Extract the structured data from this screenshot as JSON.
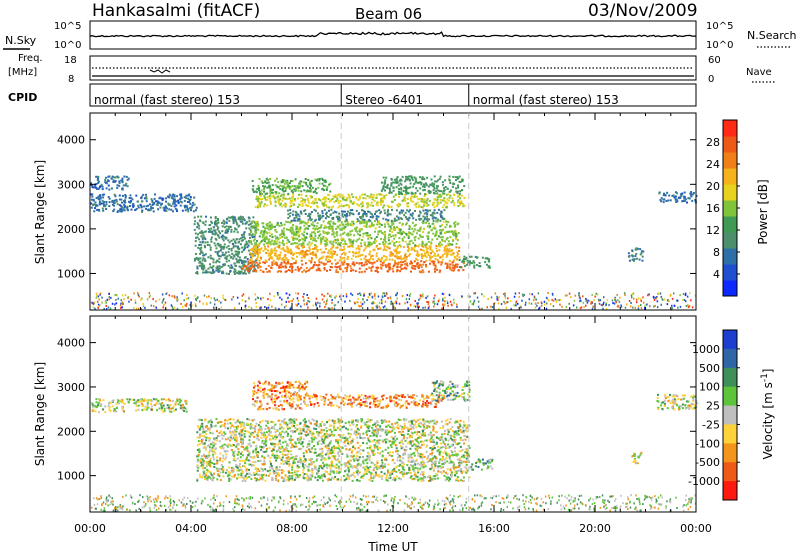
{
  "header": {
    "station": "Hankasalmi (fitACF)",
    "beam": "Beam 06",
    "date": "03/Nov/2009"
  },
  "noise_panel": {
    "left_label": "N.Sky",
    "right_label": "N.Search",
    "left_ticks": [
      "10^5",
      "10^0"
    ],
    "right_ticks": [
      "10^5",
      "10^0"
    ]
  },
  "freq_panel": {
    "left_label_line1": "Freq.",
    "left_label_line2": "[MHz]",
    "right_label": "Nave",
    "left_ticks": [
      "18",
      "8"
    ],
    "right_ticks": [
      "60",
      "0"
    ]
  },
  "cpid_panel": {
    "label": "CPID",
    "segments": [
      {
        "text": "normal (fast stereo) 153",
        "start_hour": 0.0,
        "end_hour": 9.95
      },
      {
        "text": "Stereo -6401",
        "start_hour": 9.95,
        "end_hour": 15.0
      },
      {
        "text": "normal (fast stereo) 153",
        "start_hour": 15.0,
        "end_hour": 24.0
      }
    ]
  },
  "chart_data": [
    {
      "type": "heatmap",
      "name": "power",
      "ylabel": "Slant Range [km]",
      "ylim": [
        180,
        4600
      ],
      "yticks": [
        1000,
        2000,
        3000,
        4000
      ],
      "colorbar": {
        "label": "Power [dB]",
        "range": [
          0,
          32
        ],
        "ticks": [
          4,
          8,
          12,
          16,
          20,
          24,
          28
        ],
        "colors": [
          "#0c29ff",
          "#1f4fd1",
          "#2e6fa8",
          "#4d8f6d",
          "#3f9b53",
          "#7fc43a",
          "#e8d21e",
          "#f5b21a",
          "#f07f1a",
          "#ee5a18",
          "#ff2b14"
        ]
      },
      "regions": [
        {
          "t0": 0.0,
          "t1": 4.2,
          "r0": 2400,
          "r1": 2800,
          "level": 7
        },
        {
          "t0": 0.0,
          "t1": 1.5,
          "r0": 2900,
          "r1": 3200,
          "level": 7
        },
        {
          "t0": 4.1,
          "t1": 6.6,
          "r0": 1000,
          "r1": 2300,
          "level": 10
        },
        {
          "t0": 6.0,
          "t1": 14.8,
          "r0": 1050,
          "r1": 1300,
          "level": 27
        },
        {
          "t0": 6.3,
          "t1": 14.6,
          "r0": 1300,
          "r1": 1650,
          "level": 22
        },
        {
          "t0": 6.3,
          "t1": 14.6,
          "r0": 1650,
          "r1": 2200,
          "level": 16
        },
        {
          "t0": 7.8,
          "t1": 14.0,
          "r0": 2200,
          "r1": 2450,
          "level": 9
        },
        {
          "t0": 6.5,
          "t1": 14.8,
          "r0": 2500,
          "r1": 2800,
          "level": 18
        },
        {
          "t0": 6.4,
          "t1": 9.5,
          "r0": 2800,
          "r1": 3150,
          "level": 14
        },
        {
          "t0": 11.5,
          "t1": 14.8,
          "r0": 2800,
          "r1": 3200,
          "level": 12
        },
        {
          "t0": 14.6,
          "t1": 15.8,
          "r0": 1150,
          "r1": 1400,
          "level": 12
        },
        {
          "t0": 21.3,
          "t1": 21.9,
          "r0": 1300,
          "r1": 1600,
          "level": 8
        },
        {
          "t0": 22.5,
          "t1": 24.0,
          "r0": 2600,
          "r1": 2850,
          "level": 7
        }
      ],
      "ground_scatter_level": 6
    },
    {
      "type": "heatmap",
      "name": "velocity",
      "ylabel": "Slant Range [km]",
      "ylim": [
        180,
        4600
      ],
      "yticks": [
        1000,
        2000,
        3000,
        4000
      ],
      "colorbar": {
        "label": "Velocity [m s^-1]",
        "ticks": [
          "1000",
          "500",
          "100",
          "25",
          "-25",
          "-100",
          "-500",
          "-1000"
        ],
        "colors": [
          "#1d3fcf",
          "#2f66a8",
          "#3f8f5a",
          "#5cc43a",
          "#bfbfbf",
          "#ffd23a",
          "#f3951c",
          "#ef5a18",
          "#ff1a10"
        ]
      },
      "regions": [
        {
          "t0": 0.0,
          "t1": 3.8,
          "r0": 2450,
          "r1": 2750,
          "level": 4
        },
        {
          "t0": 4.2,
          "t1": 15.0,
          "r0": 900,
          "r1": 2300,
          "level": 4
        },
        {
          "t0": 6.4,
          "t1": 8.6,
          "r0": 2500,
          "r1": 3150,
          "level": 6
        },
        {
          "t0": 8.6,
          "t1": 14.0,
          "r0": 2550,
          "r1": 2850,
          "level": 6
        },
        {
          "t0": 13.5,
          "t1": 15.0,
          "r0": 2700,
          "r1": 3150,
          "level": 3
        },
        {
          "t0": 15.0,
          "t1": 15.9,
          "r0": 1150,
          "r1": 1400,
          "level": 3
        },
        {
          "t0": 21.4,
          "t1": 21.9,
          "r0": 1300,
          "r1": 1550,
          "level": 4
        },
        {
          "t0": 22.4,
          "t1": 24.0,
          "r0": 2500,
          "r1": 2850,
          "level": 4
        }
      ]
    }
  ],
  "x_axis": {
    "label": "Time UT",
    "ticks": [
      "00:00",
      "04:00",
      "08:00",
      "12:00",
      "16:00",
      "20:00",
      "00:00"
    ],
    "range_hours": [
      0,
      24
    ]
  }
}
